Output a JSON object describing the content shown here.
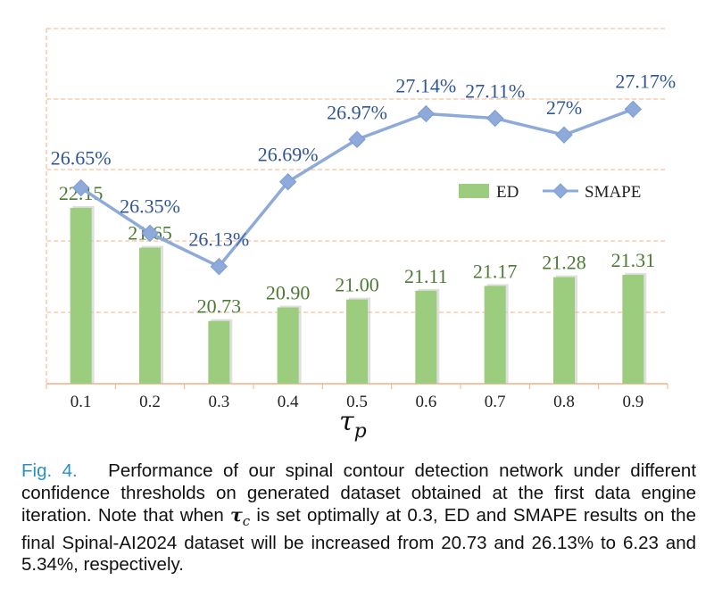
{
  "chart_data": {
    "type": "bar+line",
    "categories": [
      "0.1",
      "0.2",
      "0.3",
      "0.4",
      "0.5",
      "0.6",
      "0.7",
      "0.8",
      "0.9"
    ],
    "series": [
      {
        "name": "ED",
        "type": "bar",
        "values": [
          22.15,
          21.65,
          20.73,
          20.9,
          21.0,
          21.11,
          21.17,
          21.28,
          21.31
        ],
        "labels": [
          "22.15",
          "21.65",
          "20.73",
          "20.90",
          "21.00",
          "21.11",
          "21.17",
          "21.28",
          "21.31"
        ]
      },
      {
        "name": "SMAPE",
        "type": "line",
        "values": [
          26.65,
          26.35,
          26.13,
          26.69,
          26.97,
          27.14,
          27.11,
          27.0,
          27.17
        ],
        "labels": [
          "26.65%",
          "26.35%",
          "26.13%",
          "26.69%",
          "26.97%",
          "27.14%",
          "27.11%",
          "27%",
          "27.17%"
        ]
      }
    ],
    "xlabel": "τ",
    "xlabel_sub": "p",
    "legend": {
      "position": "right",
      "entries": [
        "ED",
        "SMAPE"
      ]
    },
    "grid": true,
    "colors": {
      "bar": "#9ccc7e",
      "bar_shadow": "#c4c4c4",
      "line": "#8eaadb",
      "marker": "#8eaadb",
      "bar_label": "#4d7a33",
      "line_label": "#2f5597",
      "grid": "#f4b183"
    }
  },
  "caption": {
    "fig_label": "Fig. 4.",
    "text_1": "Performance of our spinal contour detection network under different confidence thresholds on generated dataset obtained at the first data engine iteration. Note that when ",
    "symbol": "τ",
    "symbol_sub": "c",
    "text_2": " is set optimally at 0.3, ED and SMAPE results on the final Spinal-AI2024 dataset will be increased from 20.73 and 26.13% to 6.23 and 5.34%, respectively."
  }
}
